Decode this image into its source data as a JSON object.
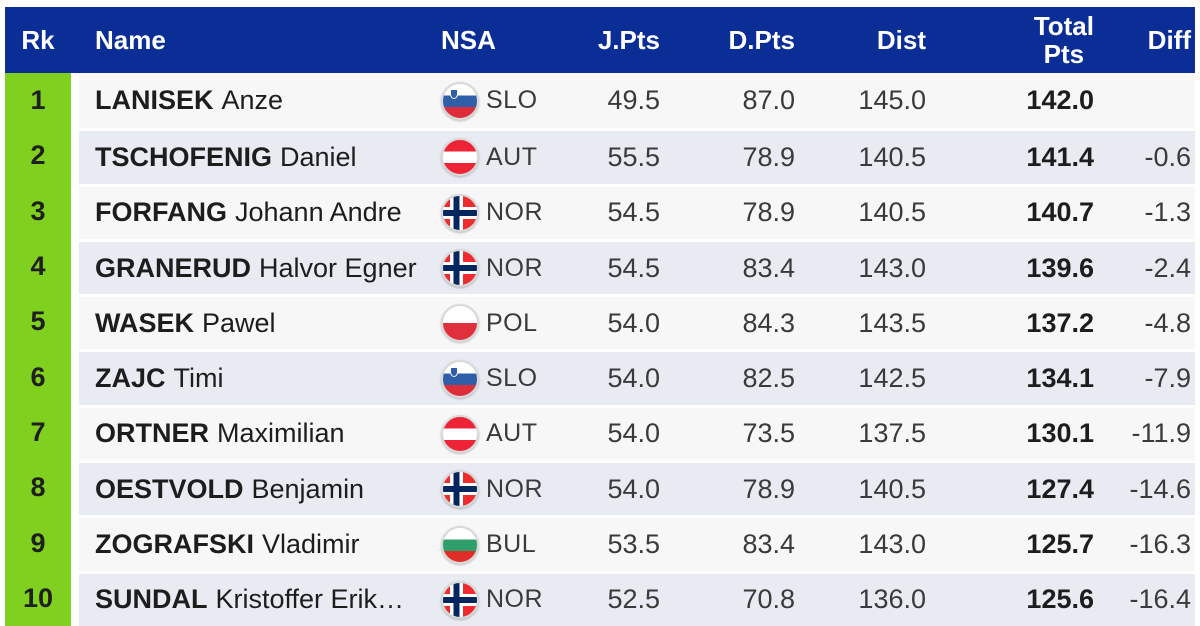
{
  "colors": {
    "header-bg": "#0a2e96",
    "header-text": "#ffffff",
    "rank-bg": "#80d020",
    "rank-text": "#1f1f1f",
    "row-light": "#f7f7f8",
    "row-dark": "#e9ebf2",
    "text-primary": "#1d1d1d",
    "text-secondary": "#3a3a3a",
    "separator": "#ffffff"
  },
  "table": {
    "columns": [
      {
        "key": "rank",
        "label": "Rk"
      },
      {
        "key": "name",
        "label": "Name"
      },
      {
        "key": "nsa",
        "label": "NSA"
      },
      {
        "key": "jpts",
        "label": "J.Pts"
      },
      {
        "key": "dpts",
        "label": "D.Pts"
      },
      {
        "key": "dist",
        "label": "Dist"
      },
      {
        "key": "total",
        "label": "Total\nPts"
      },
      {
        "key": "diff",
        "label": "Diff"
      }
    ],
    "rows": [
      {
        "rank": "1",
        "surname": "LANISEK",
        "given": "Anze",
        "nsa": "SLO",
        "flag_icon": "flag-slo-icon",
        "jpts": "49.5",
        "dpts": "87.0",
        "dist": "145.0",
        "total": "142.0",
        "diff": ""
      },
      {
        "rank": "2",
        "surname": "TSCHOFENIG",
        "given": "Daniel",
        "nsa": "AUT",
        "flag_icon": "flag-aut-icon",
        "jpts": "55.5",
        "dpts": "78.9",
        "dist": "140.5",
        "total": "141.4",
        "diff": "-0.6"
      },
      {
        "rank": "3",
        "surname": "FORFANG",
        "given": "Johann Andre",
        "nsa": "NOR",
        "flag_icon": "flag-nor-icon",
        "jpts": "54.5",
        "dpts": "78.9",
        "dist": "140.5",
        "total": "140.7",
        "diff": "-1.3"
      },
      {
        "rank": "4",
        "surname": "GRANERUD",
        "given": "Halvor Egner",
        "nsa": "NOR",
        "flag_icon": "flag-nor-icon",
        "jpts": "54.5",
        "dpts": "83.4",
        "dist": "143.0",
        "total": "139.6",
        "diff": "-2.4"
      },
      {
        "rank": "5",
        "surname": "WASEK",
        "given": "Pawel",
        "nsa": "POL",
        "flag_icon": "flag-pol-icon",
        "jpts": "54.0",
        "dpts": "84.3",
        "dist": "143.5",
        "total": "137.2",
        "diff": "-4.8"
      },
      {
        "rank": "6",
        "surname": "ZAJC",
        "given": "Timi",
        "nsa": "SLO",
        "flag_icon": "flag-slo-icon",
        "jpts": "54.0",
        "dpts": "82.5",
        "dist": "142.5",
        "total": "134.1",
        "diff": "-7.9"
      },
      {
        "rank": "7",
        "surname": "ORTNER",
        "given": "Maximilian",
        "nsa": "AUT",
        "flag_icon": "flag-aut-icon",
        "jpts": "54.0",
        "dpts": "73.5",
        "dist": "137.5",
        "total": "130.1",
        "diff": "-11.9"
      },
      {
        "rank": "8",
        "surname": "OESTVOLD",
        "given": "Benjamin",
        "nsa": "NOR",
        "flag_icon": "flag-nor-icon",
        "jpts": "54.0",
        "dpts": "78.9",
        "dist": "140.5",
        "total": "127.4",
        "diff": "-14.6"
      },
      {
        "rank": "9",
        "surname": "ZOGRAFSKI",
        "given": "Vladimir",
        "nsa": "BUL",
        "flag_icon": "flag-bul-icon",
        "jpts": "53.5",
        "dpts": "83.4",
        "dist": "143.0",
        "total": "125.7",
        "diff": "-16.3"
      },
      {
        "rank": "10",
        "surname": "SUNDAL",
        "given": "Kristoffer Erik…",
        "nsa": "NOR",
        "flag_icon": "flag-nor-icon",
        "jpts": "52.5",
        "dpts": "70.8",
        "dist": "136.0",
        "total": "125.6",
        "diff": "-16.4"
      }
    ]
  }
}
